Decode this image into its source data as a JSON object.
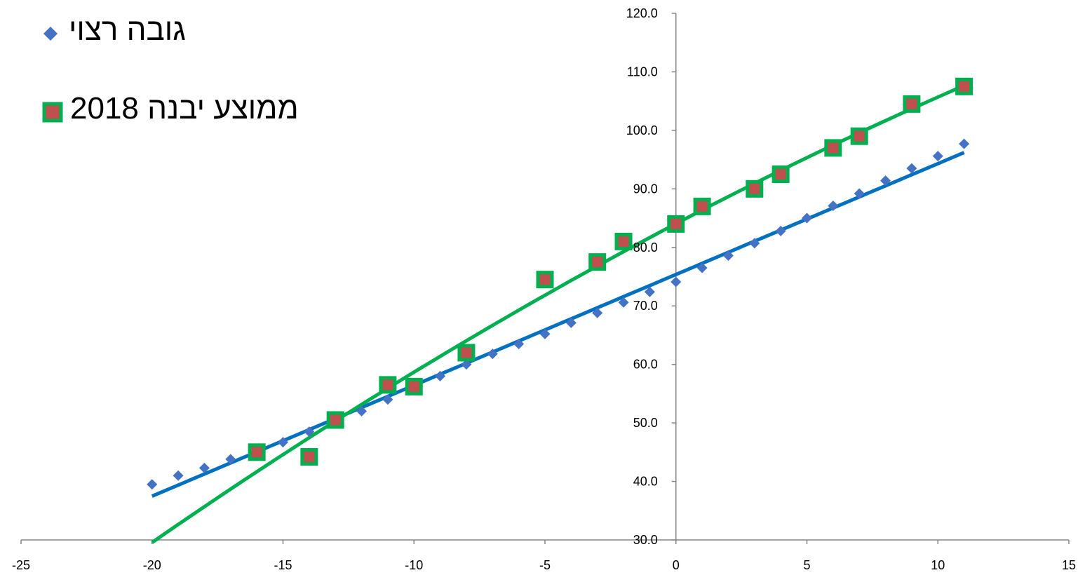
{
  "chart_data": {
    "type": "scatter",
    "xlim": [
      -25,
      15
    ],
    "ylim": [
      30,
      120
    ],
    "x_ticks": [
      "-25",
      "-20",
      "-15",
      "-10",
      "-5",
      "0",
      "5",
      "10",
      "15"
    ],
    "y_ticks": [
      "30.0",
      "40.0",
      "50.0",
      "60.0",
      "70.0",
      "80.0",
      "90.0",
      "100.0",
      "110.0",
      "120.0"
    ],
    "legend_position": "top-left",
    "series": [
      {
        "name": "גובה רצוי",
        "marker": "diamond",
        "marker_color": "#4472C4",
        "trendline_color": "#0070C0",
        "trendline": "linear",
        "x": [
          -20,
          -19,
          -18,
          -17,
          -16,
          -15,
          -14,
          -13,
          -12,
          -11,
          -10,
          -9,
          -8,
          -7,
          -6,
          -5,
          -4,
          -3,
          -2,
          -1,
          0,
          1,
          2,
          3,
          4,
          5,
          6,
          7,
          8,
          9,
          10,
          11
        ],
        "y": [
          39.5,
          41,
          42.3,
          43.8,
          45.2,
          46.7,
          48.5,
          50.3,
          52,
          54,
          56,
          58,
          60,
          61.8,
          63.5,
          65.2,
          67.1,
          68.8,
          70.6,
          72.4,
          74.1,
          76.5,
          78.6,
          80.7,
          82.8,
          85,
          87.1,
          89.2,
          91.4,
          93.5,
          95.6,
          97.7
        ]
      },
      {
        "name": "ממוצע יבנה 2018",
        "marker": "square",
        "marker_color": "#C0504D",
        "marker_border": "#00B050",
        "trendline_color": "#00B050",
        "trendline": "polynomial",
        "x": [
          -16,
          -14,
          -13,
          -11,
          -10,
          -8,
          -5,
          -3,
          -2,
          0,
          1,
          3,
          4,
          6,
          7,
          9,
          11
        ],
        "y": [
          45,
          44.2,
          50.5,
          56.5,
          56.2,
          62,
          74.5,
          77.5,
          81,
          84,
          87,
          90,
          92.5,
          97,
          99,
          104.5,
          107.5
        ]
      }
    ]
  }
}
